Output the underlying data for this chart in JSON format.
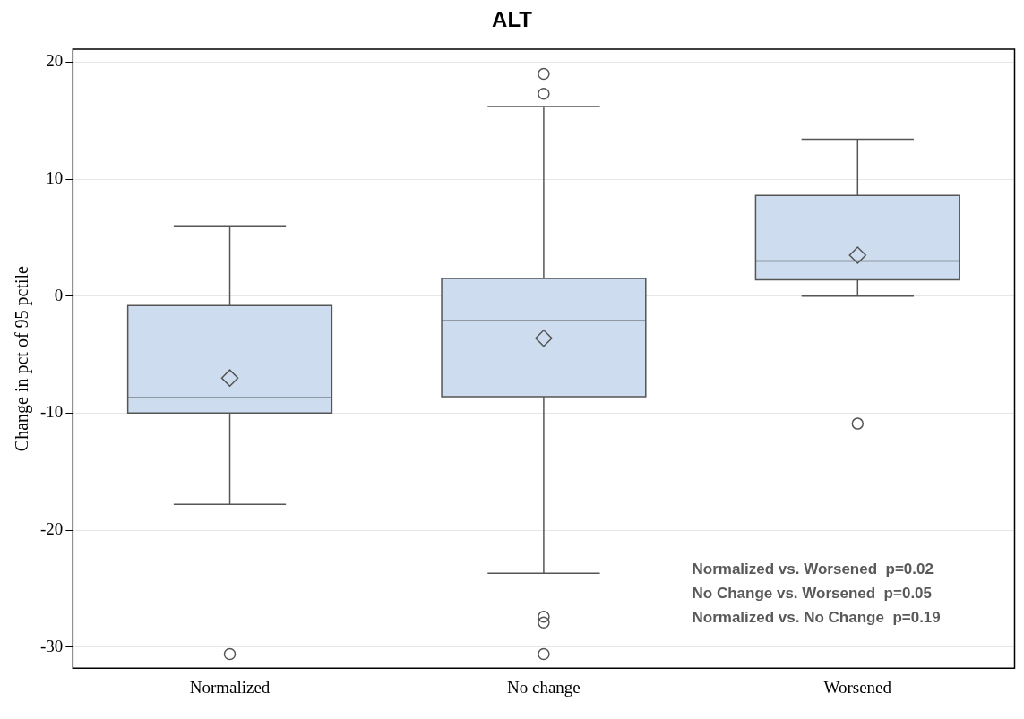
{
  "chart_data": {
    "type": "box",
    "title": "ALT",
    "ylabel": "Change in pct of 95 pctile",
    "categories": [
      "Normalized",
      "No change",
      "Worsened"
    ],
    "boxes": [
      {
        "low": -17.8,
        "q1": -10,
        "median": -8.7,
        "q3": -0.8,
        "high": 6,
        "mean": -7,
        "outliers": [
          -30.6
        ]
      },
      {
        "low": -23.7,
        "q1": -8.6,
        "median": -2.1,
        "q3": 1.5,
        "high": 16.2,
        "mean": -3.6,
        "outliers": [
          19,
          17.3,
          -27.4,
          -27.9,
          -30.6
        ]
      },
      {
        "low": 0,
        "q1": 1.4,
        "median": 3,
        "q3": 8.6,
        "high": 13.4,
        "mean": 3.5,
        "outliers": [
          -10.9
        ]
      }
    ],
    "color": "#cddcee",
    "ylim": [
      -31.8,
      21.1
    ],
    "yticks": [
      -30,
      -20,
      -10,
      0,
      10,
      20
    ],
    "grid": "y",
    "legend": false,
    "annotations": [
      "Normalized vs. Worsened  p=0.02",
      "No Change vs. Worsened  p=0.05",
      "Normalized vs. No Change  p=0.19"
    ]
  }
}
